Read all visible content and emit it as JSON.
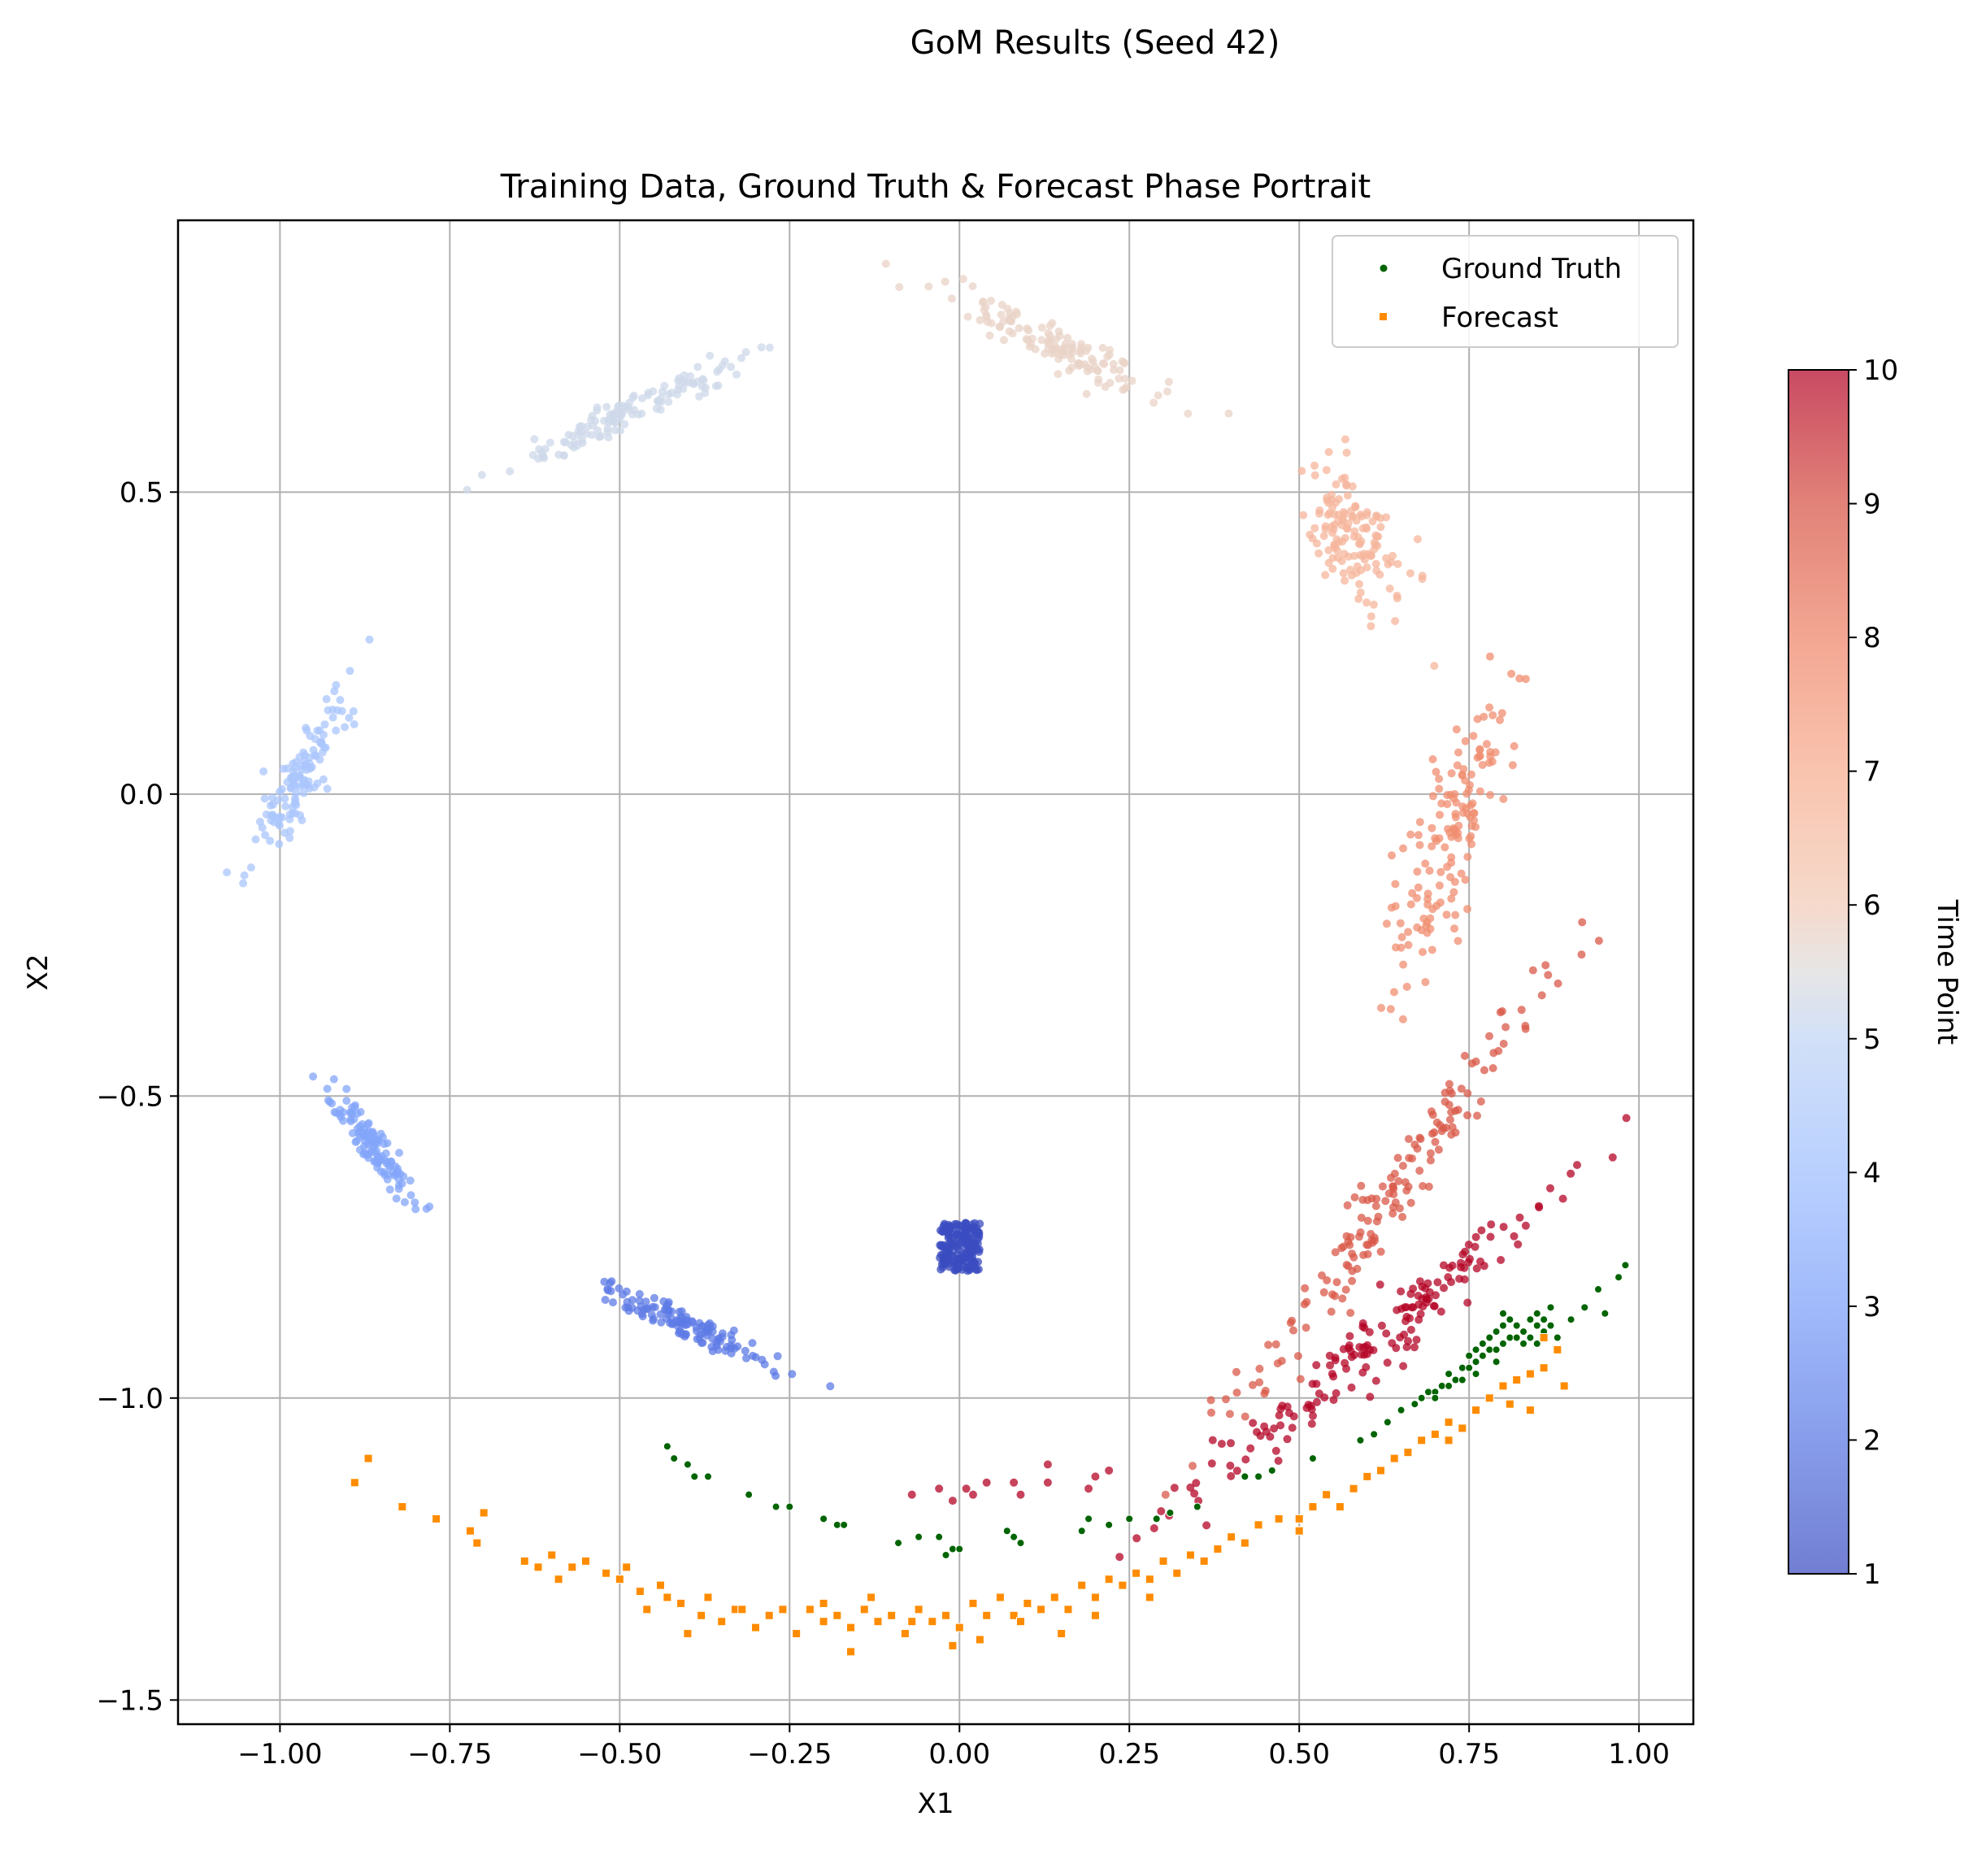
{
  "suptitle": "GoM Results (Seed 42)",
  "chart_data": {
    "type": "scatter",
    "title": "Training Data, Ground Truth & Forecast Phase Portrait",
    "xlabel": "X1",
    "ylabel": "X2",
    "xlim": [
      -1.15,
      1.08
    ],
    "ylim": [
      -1.54,
      0.95
    ],
    "xticks": [
      -1.0,
      -0.75,
      -0.5,
      -0.25,
      0.0,
      0.25,
      0.5,
      0.75,
      1.0
    ],
    "xtick_labels": [
      "−1.00",
      "−0.75",
      "−0.50",
      "−0.25",
      "0.00",
      "0.25",
      "0.50",
      "0.75",
      "1.00"
    ],
    "yticks": [
      -1.5,
      -1.0,
      -0.5,
      0.0,
      0.5
    ],
    "ytick_labels": [
      "−1.5",
      "−1.0",
      "−0.5",
      "0.0",
      "0.5"
    ],
    "grid": true,
    "legend_position": "top-right",
    "colorbar": {
      "label": "Time Point",
      "min": 1,
      "max": 10,
      "ticks": [
        1,
        2,
        3,
        4,
        5,
        6,
        7,
        8,
        9,
        10
      ],
      "colormap": "coolwarm"
    },
    "training_clusters": [
      {
        "time": 1,
        "center": [
          0.0,
          -0.75
        ],
        "spread": [
          0.03,
          0.025
        ],
        "slope": 0.0,
        "count": 180
      },
      {
        "time": 2,
        "center": [
          -0.4,
          -0.88
        ],
        "spread": [
          0.05,
          0.012
        ],
        "slope": -0.55,
        "count": 130
      },
      {
        "time": 3,
        "center": [
          -0.86,
          -0.59
        ],
        "spread": [
          0.03,
          0.012
        ],
        "slope": -1.55,
        "count": 120
      },
      {
        "time": 4,
        "center": [
          -0.97,
          0.03
        ],
        "spread": [
          0.035,
          0.018
        ],
        "slope": 2.2,
        "count": 130
      },
      {
        "time": 5,
        "center": [
          -0.49,
          0.63
        ],
        "spread": [
          0.08,
          0.012
        ],
        "slope": 0.55,
        "count": 130
      },
      {
        "time": 6,
        "center": [
          0.13,
          0.75
        ],
        "spread": [
          0.075,
          0.015
        ],
        "slope": -0.55,
        "count": 130
      },
      {
        "time": 7,
        "center": [
          0.58,
          0.43
        ],
        "spread": [
          0.025,
          0.03
        ],
        "slope": -2.7,
        "count": 140
      },
      {
        "time": 8,
        "center": [
          0.72,
          -0.08
        ],
        "spread": [
          0.045,
          0.025
        ],
        "slope": 3.2,
        "count": 150
      },
      {
        "time": 9,
        "center": [
          0.65,
          -0.64
        ],
        "spread": [
          0.11,
          0.02
        ],
        "slope": 1.6,
        "count": 160
      },
      {
        "time": 10,
        "center": [
          0.6,
          -0.92
        ],
        "spread": [
          0.13,
          0.02
        ],
        "slope": 0.95,
        "count": 170
      }
    ],
    "time10_arc_points": [
      [
        -0.07,
        -1.16
      ],
      [
        -0.03,
        -1.15
      ],
      [
        -0.01,
        -1.17
      ],
      [
        0.01,
        -1.15
      ],
      [
        0.02,
        -1.16
      ],
      [
        0.04,
        -1.14
      ],
      [
        0.08,
        -1.14
      ],
      [
        0.09,
        -1.16
      ],
      [
        0.13,
        -1.11
      ],
      [
        0.13,
        -1.14
      ],
      [
        0.2,
        -1.13
      ],
      [
        0.22,
        -1.12
      ],
      [
        0.19,
        -1.15
      ]
    ],
    "series": [
      {
        "name": "Ground Truth",
        "color": "#006400",
        "marker": "circle",
        "points": [
          [
            -0.43,
            -1.08
          ],
          [
            -0.42,
            -1.1
          ],
          [
            -0.4,
            -1.11
          ],
          [
            -0.39,
            -1.13
          ],
          [
            -0.37,
            -1.13
          ],
          [
            -0.31,
            -1.16
          ],
          [
            -0.27,
            -1.18
          ],
          [
            -0.25,
            -1.18
          ],
          [
            -0.2,
            -1.2
          ],
          [
            -0.18,
            -1.21
          ],
          [
            -0.17,
            -1.21
          ],
          [
            -0.09,
            -1.24
          ],
          [
            -0.06,
            -1.23
          ],
          [
            -0.03,
            -1.23
          ],
          [
            -0.02,
            -1.26
          ],
          [
            -0.01,
            -1.25
          ],
          [
            0.0,
            -1.25
          ],
          [
            0.07,
            -1.22
          ],
          [
            0.08,
            -1.23
          ],
          [
            0.09,
            -1.24
          ],
          [
            0.18,
            -1.22
          ],
          [
            0.19,
            -1.2
          ],
          [
            0.22,
            -1.21
          ],
          [
            0.25,
            -1.2
          ],
          [
            0.29,
            -1.2
          ],
          [
            0.31,
            -1.19
          ],
          [
            0.35,
            -1.18
          ],
          [
            0.42,
            -1.13
          ],
          [
            0.44,
            -1.13
          ],
          [
            0.46,
            -1.12
          ],
          [
            0.52,
            -1.1
          ],
          [
            0.59,
            -1.07
          ],
          [
            0.61,
            -1.06
          ],
          [
            0.63,
            -1.04
          ],
          [
            0.65,
            -1.02
          ],
          [
            0.68,
            -1.0
          ],
          [
            0.69,
            -0.99
          ],
          [
            0.7,
            -0.99
          ],
          [
            0.71,
            -0.98
          ],
          [
            0.72,
            -0.98
          ],
          [
            0.72,
            -0.96
          ],
          [
            0.73,
            -0.97
          ],
          [
            0.74,
            -0.95
          ],
          [
            0.75,
            -0.95
          ],
          [
            0.75,
            -0.93
          ],
          [
            0.76,
            -0.94
          ],
          [
            0.76,
            -0.92
          ],
          [
            0.77,
            -0.93
          ],
          [
            0.77,
            -0.91
          ],
          [
            0.78,
            -0.92
          ],
          [
            0.78,
            -0.9
          ],
          [
            0.79,
            -0.92
          ],
          [
            0.79,
            -0.89
          ],
          [
            0.8,
            -0.91
          ],
          [
            0.8,
            -0.88
          ],
          [
            0.81,
            -0.9
          ],
          [
            0.81,
            -0.87
          ],
          [
            0.82,
            -0.9
          ],
          [
            0.82,
            -0.88
          ],
          [
            0.83,
            -0.89
          ],
          [
            0.84,
            -0.87
          ],
          [
            0.84,
            -0.9
          ],
          [
            0.85,
            -0.88
          ],
          [
            0.85,
            -0.86
          ],
          [
            0.86,
            -0.89
          ],
          [
            0.86,
            -0.87
          ],
          [
            0.87,
            -0.88
          ],
          [
            0.87,
            -0.85
          ],
          [
            0.88,
            -0.9
          ],
          [
            0.74,
            -0.97
          ],
          [
            0.76,
            -0.96
          ],
          [
            0.79,
            -0.94
          ],
          [
            0.83,
            -0.91
          ],
          [
            0.85,
            -0.91
          ],
          [
            0.9,
            -0.87
          ],
          [
            0.92,
            -0.85
          ],
          [
            0.94,
            -0.82
          ],
          [
            0.95,
            -0.86
          ],
          [
            0.97,
            -0.8
          ],
          [
            0.98,
            -0.78
          ],
          [
            0.7,
            -1.0
          ],
          [
            0.67,
            -1.01
          ],
          [
            0.8,
            -0.86
          ]
        ]
      },
      {
        "name": "Forecast",
        "color": "#FF8C00",
        "marker": "square",
        "points": [
          [
            -0.89,
            -1.14
          ],
          [
            -0.87,
            -1.1
          ],
          [
            -0.82,
            -1.18
          ],
          [
            -0.77,
            -1.2
          ],
          [
            -0.72,
            -1.22
          ],
          [
            -0.7,
            -1.19
          ],
          [
            -0.71,
            -1.24
          ],
          [
            -0.64,
            -1.27
          ],
          [
            -0.62,
            -1.28
          ],
          [
            -0.6,
            -1.26
          ],
          [
            -0.59,
            -1.3
          ],
          [
            -0.57,
            -1.28
          ],
          [
            -0.55,
            -1.27
          ],
          [
            -0.52,
            -1.29
          ],
          [
            -0.5,
            -1.3
          ],
          [
            -0.49,
            -1.28
          ],
          [
            -0.47,
            -1.32
          ],
          [
            -0.46,
            -1.35
          ],
          [
            -0.44,
            -1.31
          ],
          [
            -0.43,
            -1.33
          ],
          [
            -0.41,
            -1.34
          ],
          [
            -0.4,
            -1.39
          ],
          [
            -0.38,
            -1.36
          ],
          [
            -0.37,
            -1.33
          ],
          [
            -0.35,
            -1.37
          ],
          [
            -0.33,
            -1.35
          ],
          [
            -0.3,
            -1.38
          ],
          [
            -0.28,
            -1.36
          ],
          [
            -0.26,
            -1.35
          ],
          [
            -0.24,
            -1.39
          ],
          [
            -0.22,
            -1.35
          ],
          [
            -0.2,
            -1.37
          ],
          [
            -0.18,
            -1.36
          ],
          [
            -0.16,
            -1.38
          ],
          [
            -0.14,
            -1.35
          ],
          [
            -0.12,
            -1.37
          ],
          [
            -0.1,
            -1.36
          ],
          [
            -0.08,
            -1.39
          ],
          [
            -0.06,
            -1.35
          ],
          [
            -0.04,
            -1.37
          ],
          [
            -0.02,
            -1.36
          ],
          [
            0.0,
            -1.38
          ],
          [
            0.02,
            -1.34
          ],
          [
            0.04,
            -1.36
          ],
          [
            0.06,
            -1.33
          ],
          [
            0.08,
            -1.36
          ],
          [
            0.1,
            -1.34
          ],
          [
            0.12,
            -1.35
          ],
          [
            0.14,
            -1.33
          ],
          [
            0.16,
            -1.35
          ],
          [
            0.18,
            -1.31
          ],
          [
            0.2,
            -1.33
          ],
          [
            0.22,
            -1.3
          ],
          [
            0.24,
            -1.31
          ],
          [
            0.26,
            -1.29
          ],
          [
            0.28,
            -1.3
          ],
          [
            0.3,
            -1.27
          ],
          [
            0.32,
            -1.29
          ],
          [
            0.34,
            -1.26
          ],
          [
            0.36,
            -1.27
          ],
          [
            0.38,
            -1.25
          ],
          [
            0.4,
            -1.23
          ],
          [
            0.42,
            -1.24
          ],
          [
            0.44,
            -1.21
          ],
          [
            0.47,
            -1.2
          ],
          [
            0.5,
            -1.22
          ],
          [
            0.52,
            -1.18
          ],
          [
            0.54,
            -1.16
          ],
          [
            0.56,
            -1.18
          ],
          [
            0.58,
            -1.15
          ],
          [
            0.6,
            -1.13
          ],
          [
            0.62,
            -1.12
          ],
          [
            0.64,
            -1.1
          ],
          [
            0.66,
            -1.09
          ],
          [
            0.68,
            -1.07
          ],
          [
            0.7,
            -1.06
          ],
          [
            0.72,
            -1.04
          ],
          [
            0.74,
            -1.05
          ],
          [
            0.76,
            -1.02
          ],
          [
            0.78,
            -1.0
          ],
          [
            0.8,
            -0.98
          ],
          [
            0.82,
            -0.97
          ],
          [
            0.84,
            -0.96
          ],
          [
            0.86,
            -0.95
          ],
          [
            0.88,
            -0.92
          ],
          [
            0.86,
            -0.9
          ],
          [
            0.89,
            -0.98
          ],
          [
            0.84,
            -1.02
          ],
          [
            0.81,
            -1.01
          ],
          [
            0.72,
            -1.07
          ],
          [
            -0.2,
            -1.34
          ],
          [
            -0.13,
            -1.33
          ],
          [
            -0.07,
            -1.37
          ],
          [
            0.03,
            -1.4
          ],
          [
            0.09,
            -1.37
          ],
          [
            0.15,
            -1.39
          ],
          [
            -0.32,
            -1.35
          ],
          [
            -0.16,
            -1.42
          ],
          [
            -0.01,
            -1.41
          ],
          [
            0.2,
            -1.36
          ],
          [
            0.28,
            -1.33
          ],
          [
            0.5,
            -1.2
          ]
        ]
      }
    ]
  }
}
